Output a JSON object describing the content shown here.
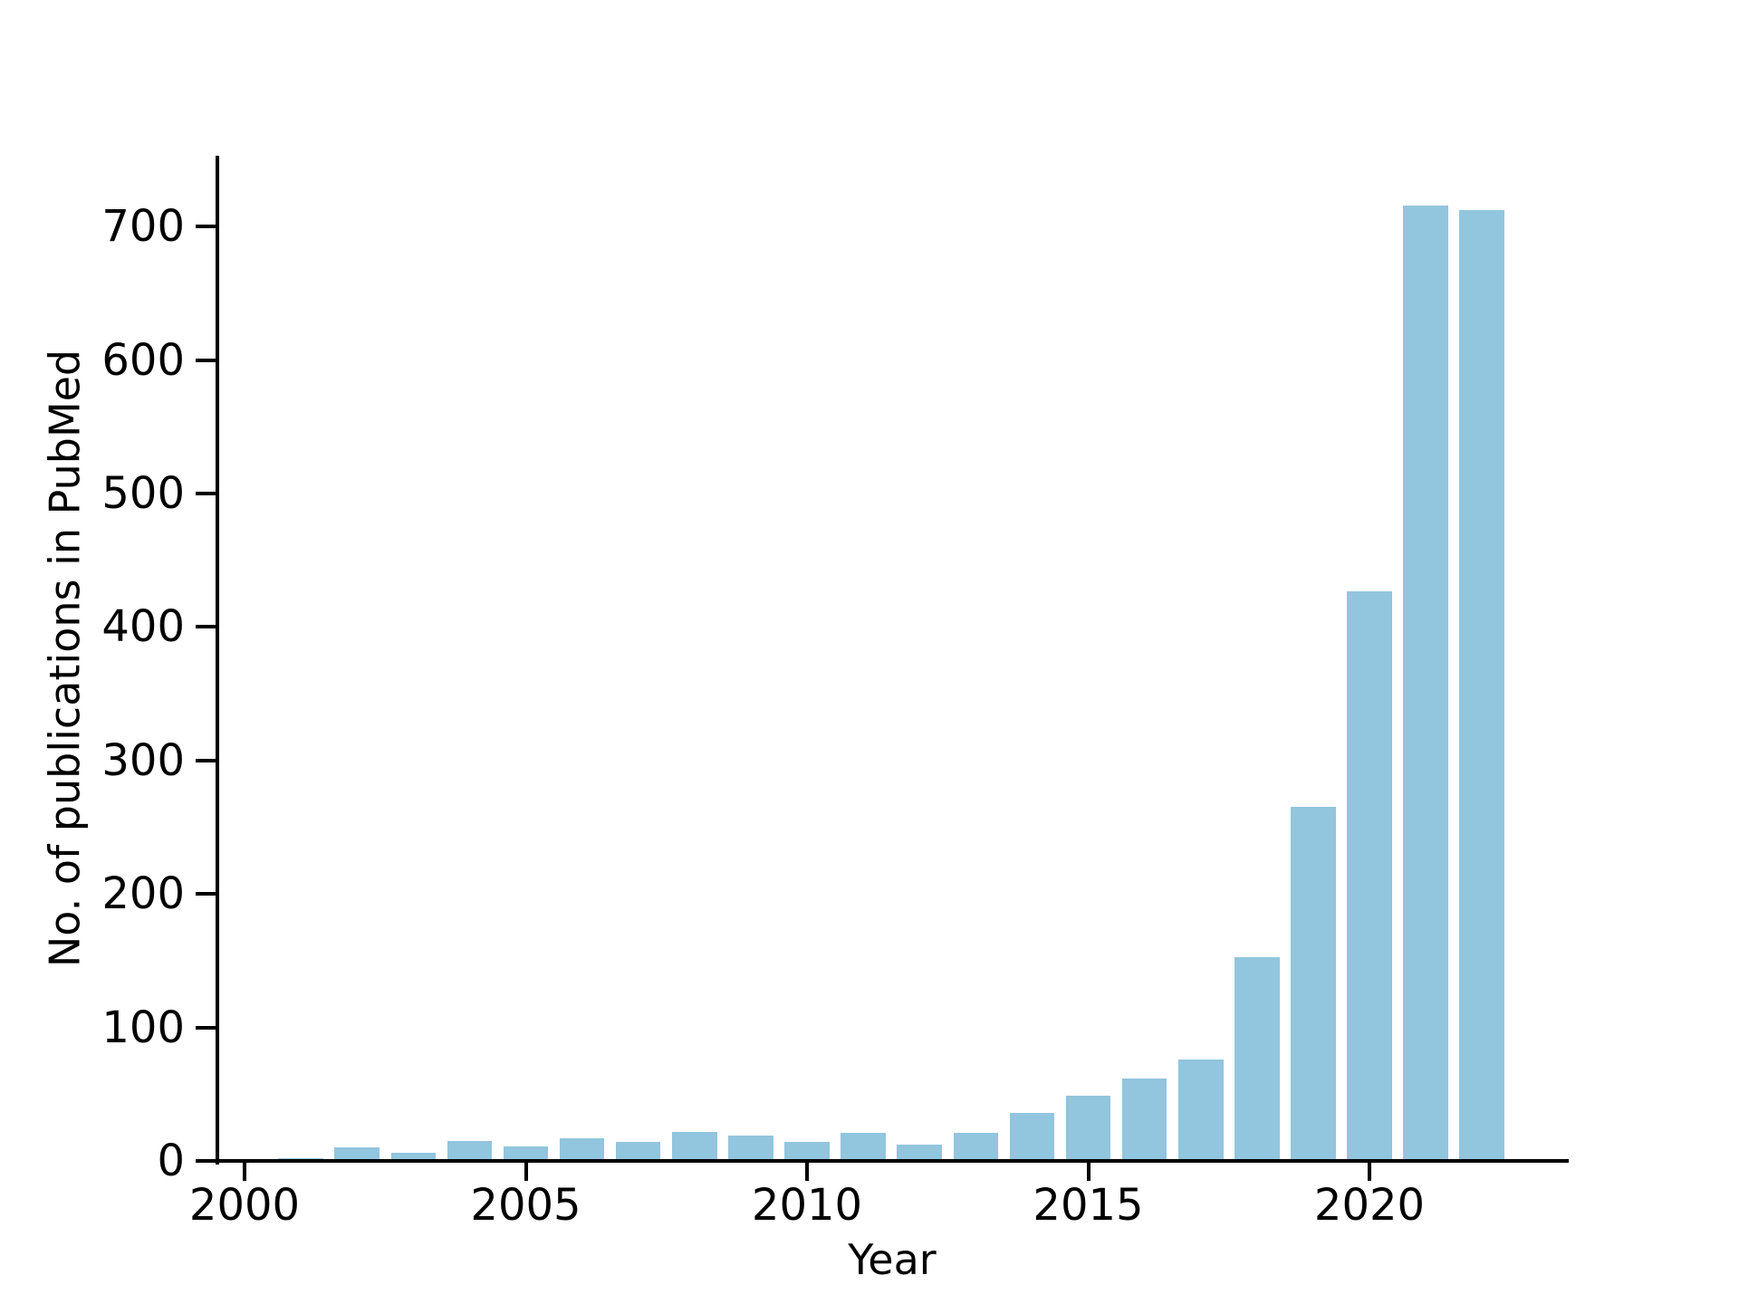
{
  "figure": {
    "background": "#ffffff"
  },
  "chart_data": {
    "type": "bar",
    "title": "",
    "xlabel": "Year",
    "ylabel": "No. of publications in PubMed",
    "x": [
      2001,
      2002,
      2003,
      2004,
      2005,
      2006,
      2007,
      2008,
      2009,
      2010,
      2011,
      2012,
      2013,
      2014,
      2015,
      2016,
      2017,
      2018,
      2019,
      2020,
      2021,
      2022
    ],
    "values": [
      2,
      10,
      6,
      15,
      11,
      17,
      14,
      22,
      19,
      14,
      21,
      12,
      21,
      36,
      49,
      62,
      76,
      153,
      265,
      427,
      716,
      712
    ],
    "x_ticks": [
      2000,
      2005,
      2010,
      2015,
      2020
    ],
    "y_ticks": [
      0,
      100,
      200,
      300,
      400,
      500,
      600,
      700
    ],
    "xlim": [
      1999.5,
      2023.5
    ],
    "ylim": [
      0,
      753
    ],
    "bar_color": "#92c5de",
    "axis_color": "#000000",
    "grid": false,
    "legend": null
  }
}
